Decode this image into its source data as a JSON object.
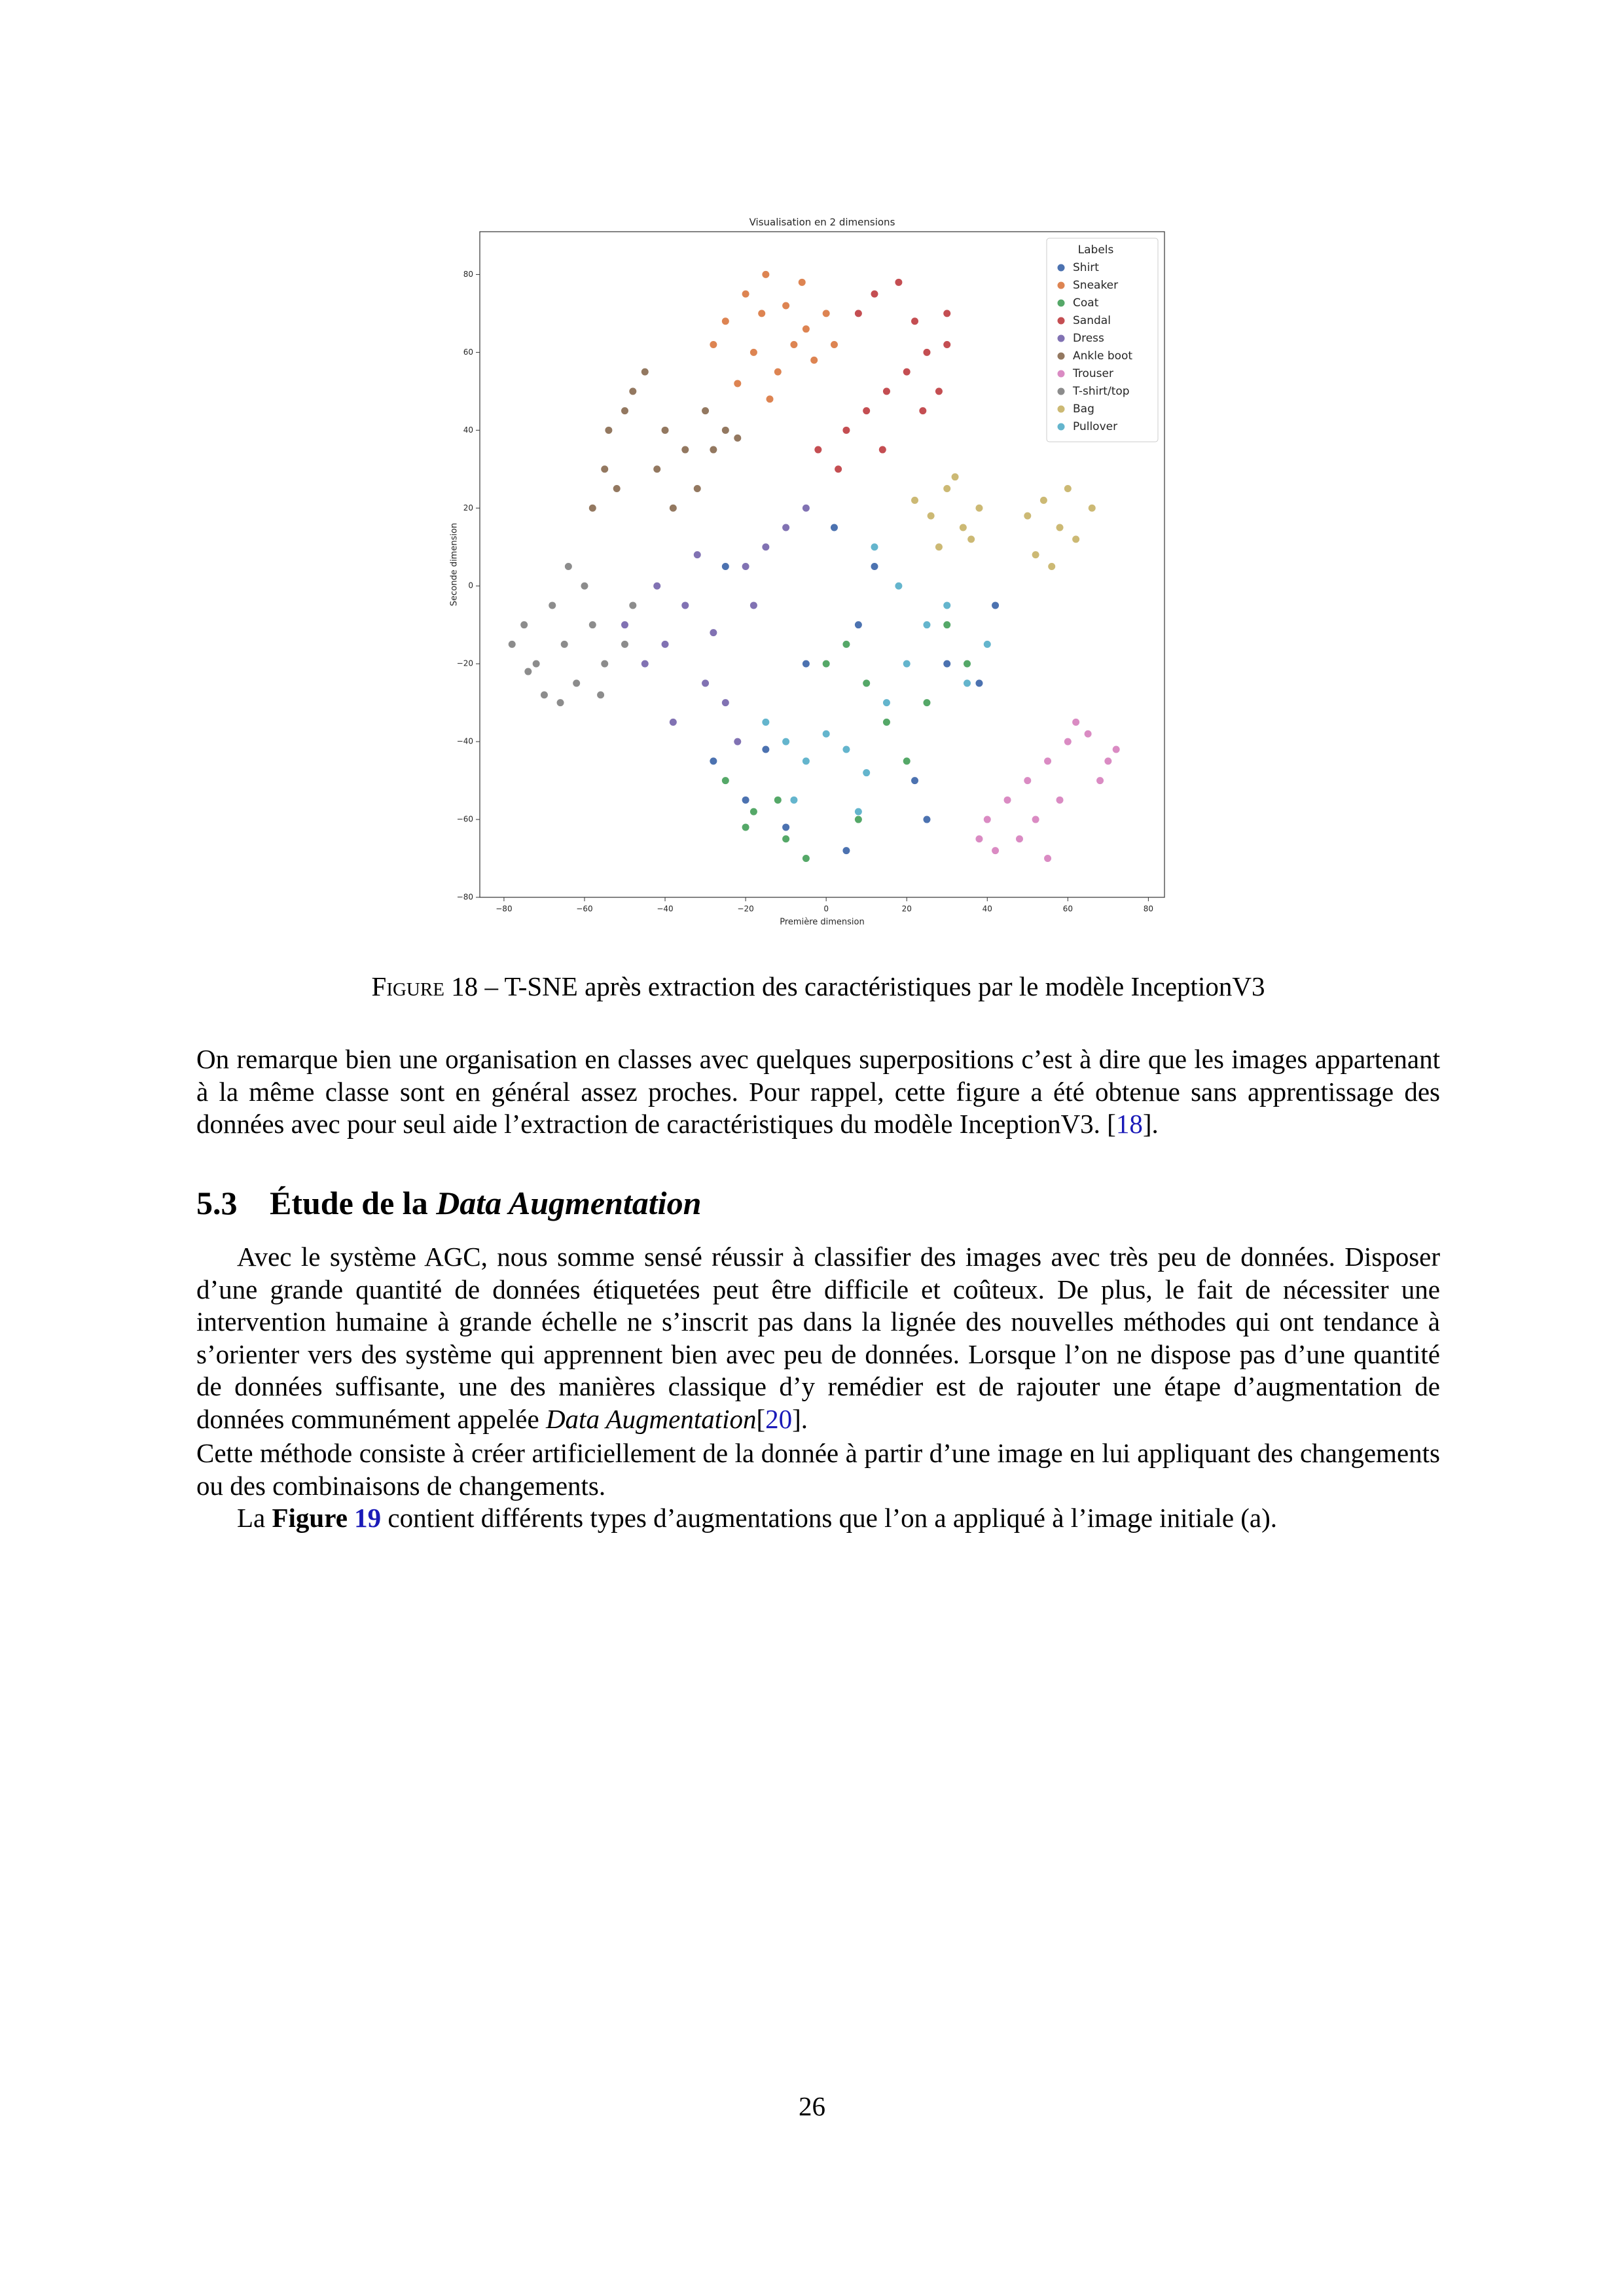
{
  "chart_data": {
    "type": "scatter",
    "title": "Visualisation en 2 dimensions",
    "x_label": "Première dimension",
    "y_label": "Seconde dimension",
    "xlim": [
      -86,
      84
    ],
    "ylim": [
      -80,
      91
    ],
    "xticks": [
      {
        "value": -80,
        "label": "−80"
      },
      {
        "value": -60,
        "label": "−60"
      },
      {
        "value": -40,
        "label": "−40"
      },
      {
        "value": -20,
        "label": "−20"
      },
      0,
      20,
      40,
      60,
      80
    ],
    "yticks": [
      {
        "value": -80,
        "label": "−80"
      },
      {
        "value": -60,
        "label": "−60"
      },
      {
        "value": -40,
        "label": "−40"
      },
      {
        "value": -20,
        "label": "−20"
      },
      0,
      20,
      40,
      60,
      80
    ],
    "legend_title": "Labels",
    "legend_location": "upper right",
    "series": [
      {
        "name": "Shirt",
        "color": "#4c72b0",
        "x": [
          -28,
          -20,
          -10,
          -5,
          2,
          8,
          15,
          22,
          30,
          38,
          42,
          -15,
          5,
          12,
          -25,
          25
        ],
        "values": [
          -45,
          -55,
          -62,
          -20,
          15,
          -10,
          -30,
          -50,
          -20,
          -25,
          -5,
          -42,
          -68,
          5,
          5,
          -60
        ]
      },
      {
        "name": "Sneaker",
        "color": "#dd8452",
        "x": [
          -25,
          -20,
          -15,
          -10,
          -5,
          0,
          -18,
          -12,
          -8,
          -3,
          -22,
          -14,
          2,
          -6,
          -28,
          -16
        ],
        "values": [
          68,
          75,
          80,
          72,
          66,
          70,
          60,
          55,
          62,
          58,
          52,
          48,
          62,
          78,
          62,
          70
        ]
      },
      {
        "name": "Coat",
        "color": "#55a868",
        "x": [
          -25,
          -18,
          -10,
          -5,
          0,
          5,
          10,
          15,
          20,
          25,
          30,
          35,
          -12,
          8,
          -20,
          40
        ],
        "values": [
          -50,
          -58,
          -65,
          -70,
          -20,
          -15,
          -25,
          -35,
          -45,
          -30,
          -10,
          -20,
          -55,
          -60,
          -62,
          -15
        ]
      },
      {
        "name": "Sandal",
        "color": "#c44e52",
        "x": [
          5,
          10,
          15,
          20,
          25,
          30,
          8,
          12,
          18,
          22,
          28,
          3,
          14,
          24,
          -2,
          30
        ],
        "values": [
          40,
          45,
          50,
          55,
          60,
          62,
          70,
          75,
          78,
          68,
          50,
          30,
          35,
          45,
          35,
          70
        ]
      },
      {
        "name": "Dress",
        "color": "#8172b3",
        "x": [
          -50,
          -45,
          -40,
          -35,
          -30,
          -25,
          -20,
          -15,
          -38,
          -42,
          -28,
          -10,
          -18,
          -5,
          -32,
          -22
        ],
        "values": [
          -10,
          -20,
          -15,
          -5,
          -25,
          -30,
          5,
          10,
          -35,
          0,
          -12,
          15,
          -5,
          20,
          8,
          -40
        ]
      },
      {
        "name": "Ankle boot",
        "color": "#937860",
        "x": [
          -58,
          -55,
          -50,
          -45,
          -40,
          -35,
          -30,
          -25,
          -52,
          -48,
          -42,
          -38,
          -32,
          -28,
          -22,
          -54
        ],
        "values": [
          20,
          30,
          45,
          55,
          40,
          35,
          45,
          40,
          25,
          50,
          30,
          20,
          25,
          35,
          38,
          40
        ]
      },
      {
        "name": "Trouser",
        "color": "#da8bc3",
        "x": [
          40,
          45,
          50,
          55,
          60,
          65,
          70,
          42,
          48,
          52,
          58,
          62,
          68,
          38,
          55,
          72
        ],
        "values": [
          -60,
          -55,
          -50,
          -45,
          -40,
          -38,
          -45,
          -68,
          -65,
          -60,
          -55,
          -35,
          -50,
          -65,
          -70,
          -42
        ]
      },
      {
        "name": "T-shirt/top",
        "color": "#8c8c8c",
        "x": [
          -78,
          -75,
          -72,
          -68,
          -65,
          -62,
          -58,
          -55,
          -50,
          -70,
          -60,
          -48,
          -66,
          -74,
          -56,
          -64
        ],
        "values": [
          -15,
          -10,
          -20,
          -5,
          -15,
          -25,
          -10,
          -20,
          -15,
          -28,
          0,
          -5,
          -30,
          -22,
          -28,
          5
        ]
      },
      {
        "name": "Bag",
        "color": "#ccb974",
        "x": [
          22,
          26,
          30,
          34,
          38,
          28,
          32,
          36,
          50,
          54,
          58,
          62,
          66,
          52,
          60,
          56
        ],
        "values": [
          22,
          18,
          25,
          15,
          20,
          10,
          28,
          12,
          18,
          22,
          15,
          12,
          20,
          8,
          25,
          5
        ]
      },
      {
        "name": "Pullover",
        "color": "#64b5cd",
        "x": [
          -15,
          -10,
          -5,
          0,
          5,
          10,
          15,
          20,
          25,
          30,
          35,
          40,
          -8,
          8,
          18,
          12
        ],
        "values": [
          -35,
          -40,
          -45,
          -38,
          -42,
          -48,
          -30,
          -20,
          -10,
          -5,
          -25,
          -15,
          -55,
          -58,
          0,
          10
        ]
      }
    ]
  },
  "caption": {
    "label": "Figure 18",
    "text": " – T-SNE après extraction des caractéristiques par le modèle InceptionV3"
  },
  "paragraphs": [
    [
      "On remarque bien une organisation en classes avec quelques superpositions c’est à dire que les images appartenant à la même classe sont en général assez proches. Pour rappel, cette figure a été obtenue sans apprentissage des données avec pour seul aide l’extraction de caractéristiques du modèle InceptionV3. [",
      "18",
      "]."
    ],
    [
      "Avec le système AGC, nous somme sensé réussir à classifier des images avec très peu de données. Disposer d’une grande quantité de données étiquetées peut être difficile et coûteux. De plus, le fait de nécessiter une intervention humaine à grande échelle ne s’inscrit pas dans la lignée des nouvelles méthodes qui ont tendance à s’orienter vers des système qui apprennent bien avec peu de données. Lorsque l’on ne dispose pas d’une quantité de données suffisante, une des manières classique d’y remédier est de rajouter une étape d’augmentation de données communément appelée ",
      "Data Augmentation",
      "[",
      "20",
      "]."
    ],
    [
      "Cette méthode consiste à créer artificiellement de la donnée à partir d’une image en lui appliquant des changements ou des combinaisons de changements."
    ],
    [
      "La ",
      "Figure",
      " ",
      "19",
      " contient différents types d’augmentations que l’on a appliqué à l’image initiale (a)."
    ]
  ],
  "section": {
    "number": "5.3",
    "title": "Étude de la ",
    "title_italic": "Data Augmentation"
  },
  "page_number": "26"
}
